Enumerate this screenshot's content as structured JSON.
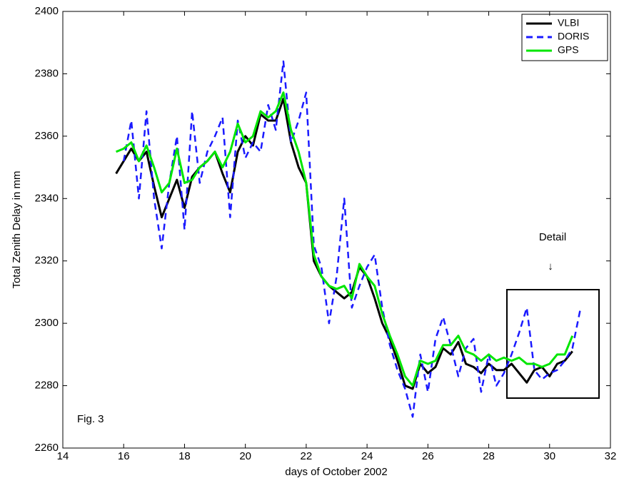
{
  "chart_data": {
    "type": "line",
    "x_label": "days of October 2002",
    "y_label": "Total Zenith Delay in mm",
    "annotations": [
      "Detail",
      "↓",
      "Fig. 3"
    ],
    "x": [
      15.75,
      16,
      16.25,
      16.5,
      16.75,
      17,
      17.25,
      17.5,
      17.75,
      18,
      18.25,
      18.5,
      18.75,
      19,
      19.25,
      19.5,
      19.75,
      20,
      20.25,
      20.5,
      20.75,
      21,
      21.25,
      21.5,
      21.75,
      22,
      22.25,
      22.5,
      22.75,
      23,
      23.25,
      23.5,
      23.75,
      24,
      24.25,
      24.5,
      24.75,
      25,
      25.25,
      25.5,
      25.75,
      26,
      26.25,
      26.5,
      26.75,
      27,
      27.25,
      27.5,
      27.75,
      28,
      28.25,
      28.5,
      28.75,
      29,
      29.25,
      29.5,
      29.75,
      30,
      30.25,
      30.5,
      30.75,
      31
    ],
    "series": [
      {
        "name": "VLBI",
        "color": "#000000",
        "dash": false,
        "values": [
          2348,
          2352,
          2356,
          2352,
          2355,
          2344,
          2334,
          2340,
          2346,
          2337,
          2347,
          2350,
          2352,
          2355,
          2348,
          2342,
          2355,
          2360,
          2357,
          2367,
          2365,
          2365,
          2372,
          2358,
          2350,
          2345,
          2320,
          2315,
          2312,
          2310,
          2308,
          2310,
          2318,
          2315,
          2308,
          2300,
          2295,
          2288,
          2280,
          2279,
          2287,
          2284,
          2286,
          2292,
          2290,
          2294,
          2287,
          2286,
          2284,
          2287,
          2285,
          2285,
          2287,
          2284,
          2281,
          2285,
          2286,
          2283,
          2287,
          2288,
          2291,
          null
        ]
      },
      {
        "name": "DORIS",
        "color": "#1a1aff",
        "dash": true,
        "values": [
          null,
          2352,
          2365,
          2340,
          2368,
          2340,
          2324,
          2345,
          2360,
          2330,
          2368,
          2345,
          2355,
          2360,
          2366,
          2334,
          2365,
          2353,
          2358,
          2355,
          2370,
          2362,
          2384,
          2358,
          2365,
          2374,
          2325,
          2318,
          2300,
          2315,
          2340,
          2305,
          2312,
          2318,
          2322,
          2305,
          2293,
          2285,
          2279,
          2270,
          2290,
          2278,
          2295,
          2302,
          2293,
          2283,
          2292,
          2295,
          2278,
          2290,
          2280,
          2284,
          2290,
          2297,
          2305,
          2285,
          2282,
          2284,
          2285,
          2288,
          2292,
          2304
        ]
      },
      {
        "name": "GPS",
        "color": "#00e600",
        "dash": false,
        "values": [
          2355,
          2356,
          2358,
          2352,
          2357,
          2350,
          2342,
          2345,
          2356,
          2345,
          2346,
          2350,
          2352,
          2355,
          2350,
          2355,
          2364,
          2358,
          2360,
          2368,
          2366,
          2368,
          2374,
          2362,
          2355,
          2345,
          2322,
          2315,
          2312,
          2311,
          2312,
          2308,
          2319,
          2315,
          2312,
          2303,
          2296,
          2290,
          2283,
          2280,
          2288,
          2287,
          2288,
          2293,
          2293,
          2296,
          2291,
          2290,
          2288,
          2290,
          2288,
          2289,
          2288,
          2289,
          2287,
          2287,
          2286,
          2287,
          2290,
          2290,
          2296,
          null
        ]
      }
    ],
    "xlim": [
      14,
      32
    ],
    "xticks": [
      14,
      16,
      18,
      20,
      22,
      24,
      26,
      28,
      30,
      32
    ],
    "ylim": [
      2260,
      2400
    ],
    "yticks": [
      2260,
      2280,
      2300,
      2320,
      2340,
      2360,
      2380,
      2400
    ],
    "legend": "upper right"
  }
}
